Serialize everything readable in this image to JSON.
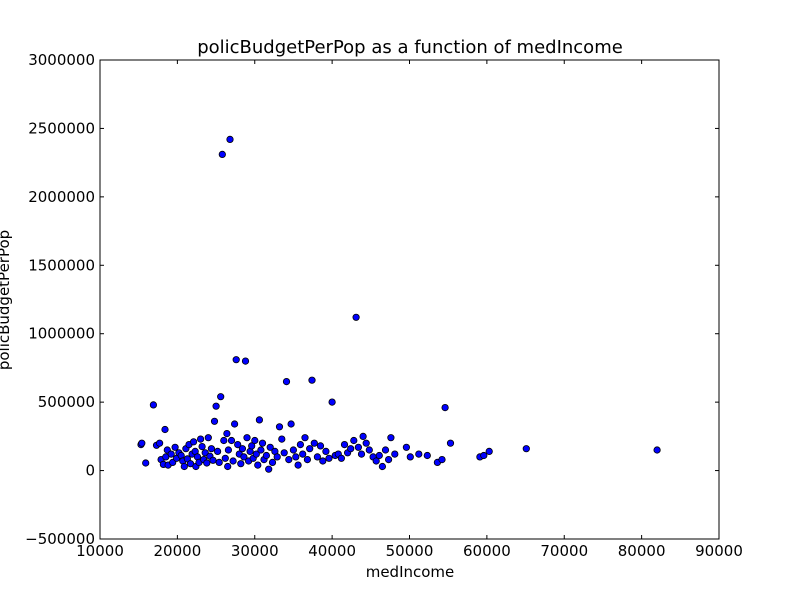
{
  "chart_data": {
    "type": "scatter",
    "title": "policBudgetPerPop as a function of medIncome",
    "xlabel": "medIncome",
    "ylabel": "policBudgetPerPop",
    "xlim": [
      10000,
      90000
    ],
    "ylim": [
      -500000,
      3000000
    ],
    "xticks": [
      10000,
      20000,
      30000,
      40000,
      50000,
      60000,
      70000,
      80000,
      90000
    ],
    "yticks": [
      -500000,
      0,
      500000,
      1000000,
      1500000,
      2000000,
      2500000,
      3000000
    ],
    "grid": false,
    "legend": "none",
    "marker_color": "#0000ff",
    "points": [
      [
        15300,
        190000
      ],
      [
        15400,
        200000
      ],
      [
        15900,
        55000
      ],
      [
        16900,
        480000
      ],
      [
        17300,
        185000
      ],
      [
        17700,
        200000
      ],
      [
        17900,
        80000
      ],
      [
        18200,
        45000
      ],
      [
        18400,
        300000
      ],
      [
        18500,
        100000
      ],
      [
        18700,
        150000
      ],
      [
        18800,
        40000
      ],
      [
        19200,
        120000
      ],
      [
        19400,
        60000
      ],
      [
        19700,
        170000
      ],
      [
        19900,
        90000
      ],
      [
        20200,
        130000
      ],
      [
        20500,
        110000
      ],
      [
        20700,
        70000
      ],
      [
        20900,
        30000
      ],
      [
        21100,
        160000
      ],
      [
        21300,
        85000
      ],
      [
        21500,
        190000
      ],
      [
        21700,
        50000
      ],
      [
        21900,
        120000
      ],
      [
        22100,
        210000
      ],
      [
        22300,
        140000
      ],
      [
        22400,
        30000
      ],
      [
        22600,
        100000
      ],
      [
        22800,
        60000
      ],
      [
        23000,
        230000
      ],
      [
        23200,
        175000
      ],
      [
        23400,
        80000
      ],
      [
        23600,
        130000
      ],
      [
        23800,
        55000
      ],
      [
        24000,
        240000
      ],
      [
        24200,
        105000
      ],
      [
        24400,
        160000
      ],
      [
        24600,
        75000
      ],
      [
        24800,
        360000
      ],
      [
        25000,
        470000
      ],
      [
        25200,
        140000
      ],
      [
        25400,
        60000
      ],
      [
        25600,
        540000
      ],
      [
        25800,
        2310000
      ],
      [
        26000,
        220000
      ],
      [
        26200,
        90000
      ],
      [
        26400,
        270000
      ],
      [
        26500,
        30000
      ],
      [
        26600,
        150000
      ],
      [
        26800,
        2420000
      ],
      [
        27000,
        220000
      ],
      [
        27200,
        70000
      ],
      [
        27400,
        340000
      ],
      [
        27600,
        810000
      ],
      [
        27800,
        190000
      ],
      [
        28000,
        120000
      ],
      [
        28200,
        50000
      ],
      [
        28400,
        160000
      ],
      [
        28600,
        100000
      ],
      [
        28800,
        800000
      ],
      [
        29000,
        240000
      ],
      [
        29200,
        70000
      ],
      [
        29400,
        140000
      ],
      [
        29600,
        180000
      ],
      [
        29800,
        90000
      ],
      [
        30000,
        220000
      ],
      [
        30200,
        120000
      ],
      [
        30400,
        40000
      ],
      [
        30600,
        370000
      ],
      [
        30800,
        150000
      ],
      [
        31000,
        200000
      ],
      [
        31200,
        80000
      ],
      [
        31500,
        110000
      ],
      [
        31800,
        10000
      ],
      [
        32000,
        170000
      ],
      [
        32300,
        60000
      ],
      [
        32600,
        140000
      ],
      [
        32900,
        100000
      ],
      [
        33200,
        320000
      ],
      [
        33500,
        230000
      ],
      [
        33800,
        130000
      ],
      [
        34100,
        650000
      ],
      [
        34400,
        80000
      ],
      [
        34700,
        340000
      ],
      [
        35000,
        150000
      ],
      [
        35300,
        100000
      ],
      [
        35600,
        40000
      ],
      [
        35900,
        190000
      ],
      [
        36200,
        120000
      ],
      [
        36500,
        240000
      ],
      [
        36800,
        80000
      ],
      [
        37100,
        160000
      ],
      [
        37400,
        660000
      ],
      [
        37700,
        200000
      ],
      [
        38100,
        100000
      ],
      [
        38500,
        180000
      ],
      [
        38800,
        70000
      ],
      [
        39200,
        140000
      ],
      [
        39600,
        90000
      ],
      [
        40000,
        500000
      ],
      [
        40400,
        110000
      ],
      [
        40800,
        120000
      ],
      [
        41200,
        90000
      ],
      [
        41600,
        190000
      ],
      [
        42000,
        130000
      ],
      [
        42400,
        160000
      ],
      [
        42800,
        220000
      ],
      [
        43100,
        1120000
      ],
      [
        43400,
        170000
      ],
      [
        43800,
        120000
      ],
      [
        44000,
        250000
      ],
      [
        44400,
        200000
      ],
      [
        44800,
        150000
      ],
      [
        45300,
        100000
      ],
      [
        45700,
        70000
      ],
      [
        46100,
        110000
      ],
      [
        46500,
        30000
      ],
      [
        46900,
        150000
      ],
      [
        47300,
        80000
      ],
      [
        47600,
        240000
      ],
      [
        48100,
        120000
      ],
      [
        49600,
        170000
      ],
      [
        50100,
        100000
      ],
      [
        51200,
        120000
      ],
      [
        52300,
        110000
      ],
      [
        53600,
        60000
      ],
      [
        54200,
        80000
      ],
      [
        54600,
        460000
      ],
      [
        55300,
        200000
      ],
      [
        59100,
        100000
      ],
      [
        59600,
        110000
      ],
      [
        60300,
        140000
      ],
      [
        65100,
        160000
      ],
      [
        82000,
        150000
      ]
    ]
  }
}
